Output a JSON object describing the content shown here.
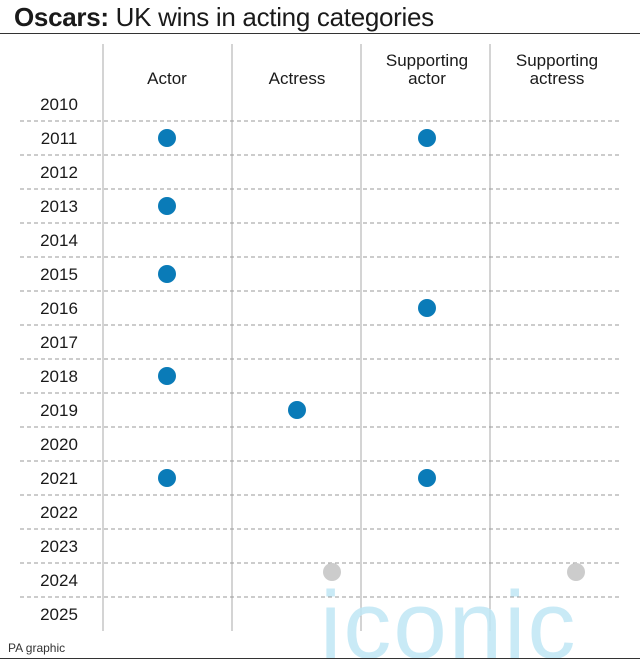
{
  "header": {
    "title_bold": "Oscars:",
    "title_rest": " UK wins in acting categories"
  },
  "footer": {
    "credit": "PA graphic"
  },
  "watermark": {
    "text": "iconic"
  },
  "colors": {
    "dot": "#0a7bb8",
    "watermark_dot": "#cccccc",
    "watermark_text": "#bfe6f5",
    "divider": "#aaaaaa",
    "row_line": "#999999"
  },
  "chart_data": {
    "type": "table",
    "title": "Oscars: UK wins in acting categories",
    "columns": [
      {
        "label_lines": [
          "Actor"
        ]
      },
      {
        "label_lines": [
          "Actress"
        ]
      },
      {
        "label_lines": [
          "Supporting",
          "actor"
        ]
      },
      {
        "label_lines": [
          "Supporting",
          "actress"
        ]
      }
    ],
    "years": [
      "2010",
      "2011",
      "2012",
      "2013",
      "2014",
      "2015",
      "2016",
      "2017",
      "2018",
      "2019",
      "2020",
      "2021",
      "2022",
      "2023",
      "2024",
      "2025"
    ],
    "wins": [
      {
        "year": "2011",
        "column": 0
      },
      {
        "year": "2011",
        "column": 2
      },
      {
        "year": "2013",
        "column": 0
      },
      {
        "year": "2015",
        "column": 0
      },
      {
        "year": "2016",
        "column": 2
      },
      {
        "year": "2018",
        "column": 0
      },
      {
        "year": "2019",
        "column": 1
      },
      {
        "year": "2021",
        "column": 0
      },
      {
        "year": "2021",
        "column": 2
      }
    ],
    "grid": true
  }
}
